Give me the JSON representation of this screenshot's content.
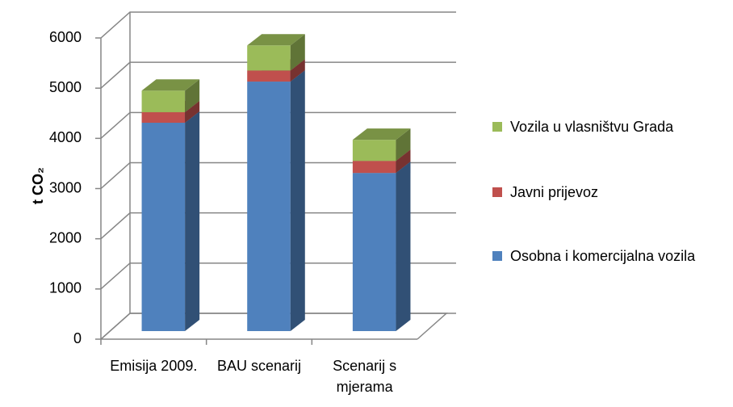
{
  "chart_data": {
    "type": "bar3d_stacked",
    "y_label": "t CO₂",
    "categories": [
      "Emisija 2009.",
      "BAU scenarij",
      "Scenarij s mjerama"
    ],
    "series": [
      {
        "name": "Osobna i komercijalna vozila",
        "color": "#4f81bd",
        "values": [
          4150,
          4970,
          3150
        ]
      },
      {
        "name": "Javni prijevoz",
        "color": "#c0504d",
        "values": [
          210,
          220,
          240
        ]
      },
      {
        "name": "Vozila u vlasništvu Grada",
        "color": "#9bbb59",
        "values": [
          430,
          500,
          420
        ]
      }
    ],
    "ylim": [
      0,
      6000
    ],
    "yticks": [
      0,
      1000,
      2000,
      3000,
      4000,
      5000,
      6000
    ],
    "grid": true,
    "legend": "right"
  }
}
